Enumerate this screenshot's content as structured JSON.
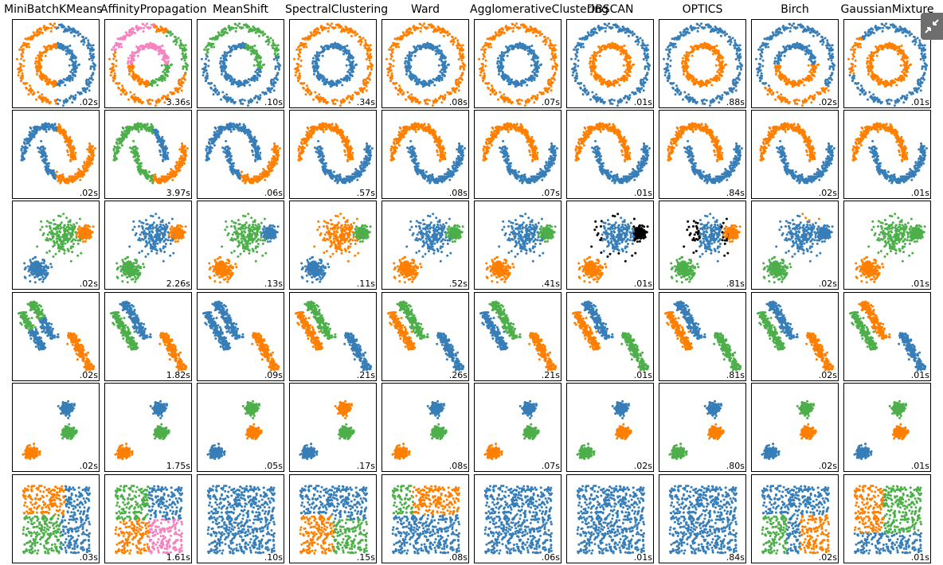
{
  "colors": {
    "c0": "#377eb8",
    "c1": "#ff7f00",
    "c2": "#4daf4a",
    "c3": "#f781bf",
    "noise": "#000000"
  },
  "toolbar": {
    "exit_fullscreen_icon": "compress-arrows-icon"
  },
  "chart_data": {
    "type": "scatter",
    "title": "",
    "algorithms": [
      "MiniBatchKMeans",
      "AffinityPropagation",
      "MeanShift",
      "SpectralClustering",
      "Ward",
      "AgglomerativeClustering",
      "DBSCAN",
      "OPTICS",
      "Birch",
      "GaussianMixture"
    ],
    "datasets": [
      "noisy_circles",
      "noisy_moons",
      "varied",
      "aniso",
      "blobs",
      "no_structure"
    ],
    "timings": [
      [
        ".02s",
        "3.36s",
        ".10s",
        ".34s",
        ".08s",
        ".07s",
        ".01s",
        ".88s",
        ".02s",
        ".01s"
      ],
      [
        ".02s",
        "3.97s",
        ".06s",
        ".57s",
        ".08s",
        ".07s",
        ".01s",
        ".84s",
        ".02s",
        ".01s"
      ],
      [
        ".02s",
        "2.26s",
        ".13s",
        ".11s",
        ".52s",
        ".41s",
        ".01s",
        ".81s",
        ".02s",
        ".01s"
      ],
      [
        ".02s",
        "1.82s",
        ".09s",
        ".21s",
        ".26s",
        ".21s",
        ".01s",
        ".81s",
        ".02s",
        ".01s"
      ],
      [
        ".02s",
        "1.75s",
        ".05s",
        ".17s",
        ".08s",
        ".07s",
        ".02s",
        ".80s",
        ".02s",
        ".01s"
      ],
      [
        ".03s",
        "1.61s",
        ".10s",
        ".15s",
        ".08s",
        ".06s",
        ".01s",
        ".84s",
        ".02s",
        ".01s"
      ]
    ],
    "grid": false,
    "axes_ticks": false
  }
}
